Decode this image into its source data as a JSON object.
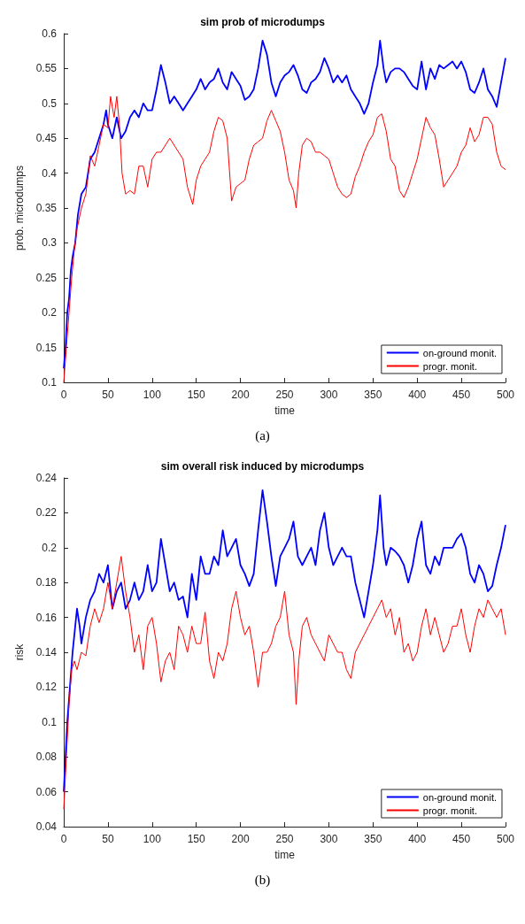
{
  "chart_data": [
    {
      "type": "line",
      "title": "sim prob of microdumps",
      "xlabel": "time",
      "ylabel": "prob. microdumps",
      "xlim": [
        0,
        500
      ],
      "xticks": [
        0,
        50,
        100,
        150,
        200,
        250,
        300,
        350,
        400,
        450,
        500
      ],
      "ylim": [
        0.1,
        0.6
      ],
      "yticks": [
        0.1,
        0.15,
        0.2,
        0.25,
        0.3,
        0.35,
        0.4,
        0.45,
        0.5,
        0.55,
        0.6
      ],
      "grid": false,
      "legend": "bottom right",
      "marker": "none",
      "line_style": "solid",
      "annotations": [
        "(a)"
      ],
      "series": [
        {
          "name": "on-ground monit.",
          "color": "#0000ff",
          "x": [
            0,
            2,
            4,
            6,
            8,
            10,
            13,
            16,
            20,
            25,
            30,
            35,
            40,
            45,
            48,
            50,
            55,
            60,
            65,
            70,
            75,
            80,
            85,
            90,
            95,
            100,
            105,
            110,
            115,
            120,
            125,
            130,
            135,
            140,
            145,
            150,
            155,
            160,
            165,
            170,
            175,
            180,
            185,
            190,
            195,
            200,
            205,
            210,
            215,
            220,
            225,
            230,
            235,
            240,
            245,
            250,
            255,
            260,
            265,
            270,
            275,
            280,
            285,
            290,
            295,
            300,
            305,
            310,
            315,
            320,
            325,
            330,
            335,
            340,
            345,
            350,
            355,
            358,
            362,
            365,
            370,
            375,
            380,
            385,
            390,
            395,
            400,
            405,
            410,
            415,
            420,
            425,
            430,
            435,
            440,
            445,
            450,
            455,
            460,
            465,
            470,
            475,
            480,
            485,
            490,
            495,
            500
          ],
          "values": [
            0.12,
            0.15,
            0.2,
            0.22,
            0.26,
            0.28,
            0.3,
            0.34,
            0.37,
            0.38,
            0.42,
            0.43,
            0.45,
            0.47,
            0.49,
            0.47,
            0.45,
            0.48,
            0.45,
            0.46,
            0.48,
            0.49,
            0.48,
            0.5,
            0.49,
            0.49,
            0.52,
            0.555,
            0.53,
            0.5,
            0.51,
            0.5,
            0.49,
            0.5,
            0.51,
            0.52,
            0.535,
            0.52,
            0.53,
            0.535,
            0.55,
            0.53,
            0.52,
            0.545,
            0.535,
            0.525,
            0.505,
            0.51,
            0.52,
            0.55,
            0.59,
            0.57,
            0.53,
            0.51,
            0.53,
            0.54,
            0.545,
            0.555,
            0.54,
            0.52,
            0.515,
            0.53,
            0.535,
            0.545,
            0.565,
            0.55,
            0.53,
            0.54,
            0.53,
            0.54,
            0.52,
            0.51,
            0.5,
            0.485,
            0.5,
            0.53,
            0.555,
            0.59,
            0.55,
            0.53,
            0.545,
            0.55,
            0.55,
            0.545,
            0.535,
            0.525,
            0.52,
            0.56,
            0.52,
            0.55,
            0.535,
            0.555,
            0.55,
            0.555,
            0.56,
            0.55,
            0.56,
            0.545,
            0.52,
            0.515,
            0.53,
            0.55,
            0.52,
            0.51,
            0.495,
            0.53,
            0.565
          ]
        },
        {
          "name": "progr. monit.",
          "color": "#ff0000",
          "x": [
            0,
            3,
            6,
            9,
            12,
            15,
            20,
            25,
            28,
            30,
            35,
            40,
            45,
            50,
            53,
            57,
            60,
            63,
            66,
            70,
            75,
            80,
            85,
            90,
            95,
            100,
            105,
            110,
            115,
            120,
            125,
            130,
            135,
            140,
            146,
            150,
            155,
            160,
            165,
            170,
            175,
            180,
            185,
            190,
            195,
            200,
            205,
            210,
            215,
            220,
            225,
            230,
            235,
            240,
            245,
            250,
            255,
            260,
            263,
            266,
            270,
            275,
            280,
            285,
            290,
            295,
            300,
            305,
            310,
            315,
            320,
            325,
            330,
            335,
            340,
            345,
            350,
            355,
            360,
            365,
            370,
            375,
            380,
            385,
            390,
            395,
            400,
            405,
            410,
            415,
            420,
            425,
            430,
            435,
            440,
            445,
            450,
            455,
            460,
            465,
            470,
            475,
            480,
            485,
            490,
            495,
            500
          ],
          "values": [
            0.1,
            0.15,
            0.2,
            0.25,
            0.29,
            0.32,
            0.35,
            0.37,
            0.4,
            0.425,
            0.41,
            0.44,
            0.47,
            0.465,
            0.51,
            0.48,
            0.51,
            0.47,
            0.4,
            0.37,
            0.375,
            0.37,
            0.41,
            0.41,
            0.38,
            0.42,
            0.43,
            0.43,
            0.44,
            0.45,
            0.44,
            0.43,
            0.42,
            0.38,
            0.355,
            0.39,
            0.41,
            0.42,
            0.43,
            0.46,
            0.48,
            0.475,
            0.45,
            0.36,
            0.38,
            0.385,
            0.39,
            0.42,
            0.44,
            0.445,
            0.45,
            0.475,
            0.49,
            0.475,
            0.46,
            0.43,
            0.39,
            0.375,
            0.35,
            0.4,
            0.44,
            0.45,
            0.445,
            0.43,
            0.43,
            0.425,
            0.42,
            0.4,
            0.38,
            0.37,
            0.365,
            0.37,
            0.395,
            0.41,
            0.43,
            0.445,
            0.455,
            0.48,
            0.485,
            0.46,
            0.42,
            0.41,
            0.375,
            0.365,
            0.38,
            0.4,
            0.42,
            0.45,
            0.48,
            0.465,
            0.455,
            0.42,
            0.38,
            0.39,
            0.4,
            0.41,
            0.43,
            0.44,
            0.465,
            0.445,
            0.455,
            0.48,
            0.48,
            0.47,
            0.43,
            0.41,
            0.405
          ]
        }
      ]
    },
    {
      "type": "line",
      "title": "sim overall risk induced by microdumps",
      "xlabel": "time",
      "ylabel": "risk",
      "xlim": [
        0,
        500
      ],
      "xticks": [
        0,
        50,
        100,
        150,
        200,
        250,
        300,
        350,
        400,
        450,
        500
      ],
      "ylim": [
        0.04,
        0.24
      ],
      "yticks": [
        0.04,
        0.06,
        0.08,
        0.1,
        0.12,
        0.14,
        0.16,
        0.18,
        0.2,
        0.22,
        0.24
      ],
      "grid": false,
      "legend": "bottom right",
      "marker": "none",
      "line_style": "solid",
      "annotations": [
        "(b)"
      ],
      "series": [
        {
          "name": "on-ground monit.",
          "color": "#0000ff",
          "x": [
            0,
            2,
            4,
            7,
            10,
            12,
            15,
            18,
            20,
            25,
            30,
            35,
            40,
            45,
            50,
            55,
            60,
            65,
            70,
            75,
            80,
            85,
            90,
            95,
            100,
            105,
            110,
            115,
            120,
            125,
            130,
            135,
            140,
            145,
            150,
            155,
            160,
            165,
            170,
            175,
            180,
            185,
            190,
            195,
            200,
            205,
            210,
            215,
            220,
            225,
            230,
            235,
            240,
            245,
            250,
            255,
            260,
            265,
            270,
            275,
            280,
            285,
            290,
            295,
            300,
            305,
            310,
            315,
            320,
            325,
            330,
            335,
            340,
            345,
            350,
            355,
            358,
            362,
            365,
            370,
            375,
            380,
            385,
            390,
            395,
            400,
            405,
            410,
            415,
            420,
            425,
            430,
            435,
            440,
            445,
            450,
            455,
            460,
            465,
            470,
            475,
            480,
            485,
            490,
            495,
            500
          ],
          "values": [
            0.06,
            0.08,
            0.1,
            0.12,
            0.14,
            0.15,
            0.165,
            0.155,
            0.145,
            0.16,
            0.17,
            0.175,
            0.185,
            0.18,
            0.19,
            0.165,
            0.175,
            0.18,
            0.165,
            0.17,
            0.18,
            0.17,
            0.175,
            0.19,
            0.175,
            0.18,
            0.205,
            0.19,
            0.175,
            0.18,
            0.17,
            0.172,
            0.16,
            0.185,
            0.17,
            0.195,
            0.185,
            0.185,
            0.195,
            0.19,
            0.21,
            0.195,
            0.2,
            0.205,
            0.19,
            0.185,
            0.178,
            0.185,
            0.21,
            0.233,
            0.215,
            0.195,
            0.178,
            0.195,
            0.2,
            0.205,
            0.215,
            0.195,
            0.19,
            0.195,
            0.2,
            0.19,
            0.21,
            0.22,
            0.2,
            0.19,
            0.195,
            0.2,
            0.195,
            0.195,
            0.18,
            0.17,
            0.16,
            0.175,
            0.19,
            0.21,
            0.23,
            0.2,
            0.19,
            0.2,
            0.198,
            0.195,
            0.19,
            0.18,
            0.19,
            0.205,
            0.215,
            0.19,
            0.185,
            0.195,
            0.19,
            0.2,
            0.2,
            0.2,
            0.205,
            0.208,
            0.2,
            0.185,
            0.18,
            0.19,
            0.185,
            0.175,
            0.178,
            0.19,
            0.2,
            0.213
          ]
        },
        {
          "name": "progr. monit.",
          "color": "#ff0000",
          "x": [
            0,
            3,
            6,
            9,
            12,
            15,
            20,
            25,
            30,
            35,
            40,
            45,
            50,
            55,
            60,
            65,
            70,
            75,
            80,
            85,
            90,
            95,
            100,
            105,
            110,
            115,
            120,
            125,
            130,
            135,
            140,
            145,
            150,
            155,
            160,
            165,
            170,
            175,
            180,
            185,
            190,
            195,
            200,
            205,
            210,
            215,
            220,
            225,
            230,
            235,
            240,
            245,
            250,
            255,
            260,
            263,
            266,
            270,
            275,
            280,
            285,
            290,
            295,
            300,
            305,
            310,
            315,
            320,
            325,
            330,
            335,
            340,
            345,
            350,
            355,
            360,
            365,
            370,
            375,
            380,
            385,
            390,
            395,
            400,
            405,
            410,
            415,
            420,
            425,
            430,
            435,
            440,
            445,
            450,
            455,
            460,
            465,
            470,
            475,
            480,
            485,
            490,
            495,
            500
          ],
          "values": [
            0.05,
            0.08,
            0.11,
            0.13,
            0.135,
            0.13,
            0.14,
            0.138,
            0.155,
            0.165,
            0.157,
            0.165,
            0.18,
            0.165,
            0.18,
            0.195,
            0.175,
            0.16,
            0.14,
            0.15,
            0.13,
            0.155,
            0.16,
            0.145,
            0.123,
            0.135,
            0.14,
            0.13,
            0.155,
            0.15,
            0.14,
            0.155,
            0.145,
            0.145,
            0.163,
            0.135,
            0.125,
            0.14,
            0.135,
            0.145,
            0.165,
            0.175,
            0.16,
            0.15,
            0.155,
            0.14,
            0.12,
            0.14,
            0.14,
            0.145,
            0.155,
            0.16,
            0.175,
            0.15,
            0.14,
            0.11,
            0.135,
            0.155,
            0.16,
            0.15,
            0.145,
            0.14,
            0.135,
            0.15,
            0.145,
            0.14,
            0.14,
            0.13,
            0.125,
            0.14,
            0.145,
            0.15,
            0.155,
            0.16,
            0.165,
            0.17,
            0.16,
            0.165,
            0.15,
            0.16,
            0.14,
            0.145,
            0.135,
            0.14,
            0.155,
            0.165,
            0.15,
            0.16,
            0.15,
            0.14,
            0.145,
            0.155,
            0.155,
            0.165,
            0.15,
            0.14,
            0.155,
            0.165,
            0.16,
            0.17,
            0.165,
            0.16,
            0.165,
            0.15
          ]
        }
      ]
    }
  ]
}
